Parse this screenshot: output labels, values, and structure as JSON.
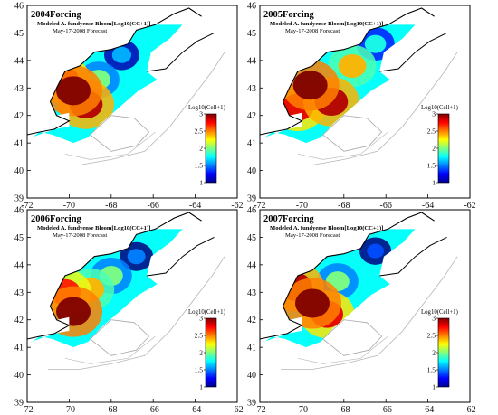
{
  "chart_data": [
    {
      "type": "heatmap",
      "title": "2004Forcing",
      "subtitle": "Modeled A. fundyense Bloom[Log10(CC+1)]",
      "forecast_date": "May-17-2008 Forecast",
      "xlim": [
        -72,
        -62
      ],
      "ylim": [
        39,
        46
      ],
      "x_ticks": [
        "-72",
        "-70",
        "-68",
        "-66",
        "-64",
        "-62"
      ],
      "y_ticks": [
        "39",
        "40",
        "41",
        "42",
        "43",
        "44",
        "45",
        "46"
      ],
      "colorbar": {
        "label": "Log10(Cell+1)",
        "ticks": [
          "1",
          "1.5",
          "2",
          "2.5",
          "3"
        ],
        "range": [
          1,
          3
        ],
        "colormap": "jet"
      },
      "hotspots": [
        {
          "lon": -69.8,
          "lat": 42.9,
          "value": 3.0
        },
        {
          "lon": -69.2,
          "lat": 42.4,
          "value": 2.9
        },
        {
          "lon": -70.3,
          "lat": 43.3,
          "value": 2.8
        },
        {
          "lon": -68.6,
          "lat": 43.3,
          "value": 2.0
        },
        {
          "lon": -67.5,
          "lat": 44.2,
          "value": 1.6
        }
      ]
    },
    {
      "type": "heatmap",
      "title": "2005Forcing",
      "subtitle": "Modeled A. fundyense Bloom[Log10(CC+1)]",
      "forecast_date": "May-17-2008 Forecast",
      "xlim": [
        -72,
        -62
      ],
      "ylim": [
        39,
        46
      ],
      "x_ticks": [
        "-72",
        "-70",
        "-68",
        "-66",
        "-64",
        "-62"
      ],
      "y_ticks": [
        "39",
        "40",
        "41",
        "42",
        "43",
        "44",
        "45",
        "46"
      ],
      "colorbar": {
        "label": "Log10(Cell+1)",
        "ticks": [
          "1",
          "1.5",
          "2",
          "2.5",
          "3"
        ],
        "range": [
          1,
          3
        ],
        "colormap": "jet"
      },
      "hotspots": [
        {
          "lon": -69.6,
          "lat": 43.1,
          "value": 3.0
        },
        {
          "lon": -68.6,
          "lat": 42.5,
          "value": 2.9
        },
        {
          "lon": -70.2,
          "lat": 42.3,
          "value": 2.8
        },
        {
          "lon": -67.6,
          "lat": 43.8,
          "value": 2.4
        },
        {
          "lon": -66.5,
          "lat": 44.6,
          "value": 1.8
        }
      ]
    },
    {
      "type": "heatmap",
      "title": "2006Forcing",
      "subtitle": "Modeled A. fundyense Bloom[Log10(CC+1)]",
      "forecast_date": "May-17-2008 Forecast",
      "xlim": [
        -72,
        -62
      ],
      "ylim": [
        39,
        46
      ],
      "x_ticks": [
        "-72",
        "-70",
        "-68",
        "-66",
        "-64",
        "-62"
      ],
      "y_ticks": [
        "39",
        "40",
        "41",
        "42",
        "43",
        "44",
        "45",
        "46"
      ],
      "colorbar": {
        "label": "Log10(Cell+1)",
        "ticks": [
          "1",
          "1.5",
          "2",
          "2.5",
          "3"
        ],
        "range": [
          1,
          3
        ],
        "colormap": "jet"
      },
      "hotspots": [
        {
          "lon": -69.8,
          "lat": 42.3,
          "value": 3.0
        },
        {
          "lon": -70.2,
          "lat": 43.0,
          "value": 2.7
        },
        {
          "lon": -69.0,
          "lat": 43.1,
          "value": 2.4
        },
        {
          "lon": -68.0,
          "lat": 43.6,
          "value": 2.0
        },
        {
          "lon": -66.8,
          "lat": 44.3,
          "value": 1.5
        }
      ]
    },
    {
      "type": "heatmap",
      "title": "2007Forcing",
      "subtitle": "Modeled A. fundyense Bloom[Log10(CC+1)]",
      "forecast_date": "May-17-2008 Forecast",
      "xlim": [
        -72,
        -62
      ],
      "ylim": [
        39,
        46
      ],
      "x_ticks": [
        "-72",
        "-70",
        "-68",
        "-66",
        "-64",
        "-62"
      ],
      "y_ticks": [
        "39",
        "40",
        "41",
        "42",
        "43",
        "44",
        "45",
        "46"
      ],
      "colorbar": {
        "label": "Log10(Cell+1)",
        "ticks": [
          "1",
          "1.5",
          "2",
          "2.5",
          "3"
        ],
        "range": [
          1,
          3
        ],
        "colormap": "jet"
      },
      "hotspots": [
        {
          "lon": -69.5,
          "lat": 42.6,
          "value": 3.0
        },
        {
          "lon": -70.3,
          "lat": 43.2,
          "value": 2.9
        },
        {
          "lon": -68.8,
          "lat": 42.2,
          "value": 2.8
        },
        {
          "lon": -68.3,
          "lat": 43.4,
          "value": 2.0
        },
        {
          "lon": -66.5,
          "lat": 44.5,
          "value": 1.4
        }
      ]
    }
  ]
}
